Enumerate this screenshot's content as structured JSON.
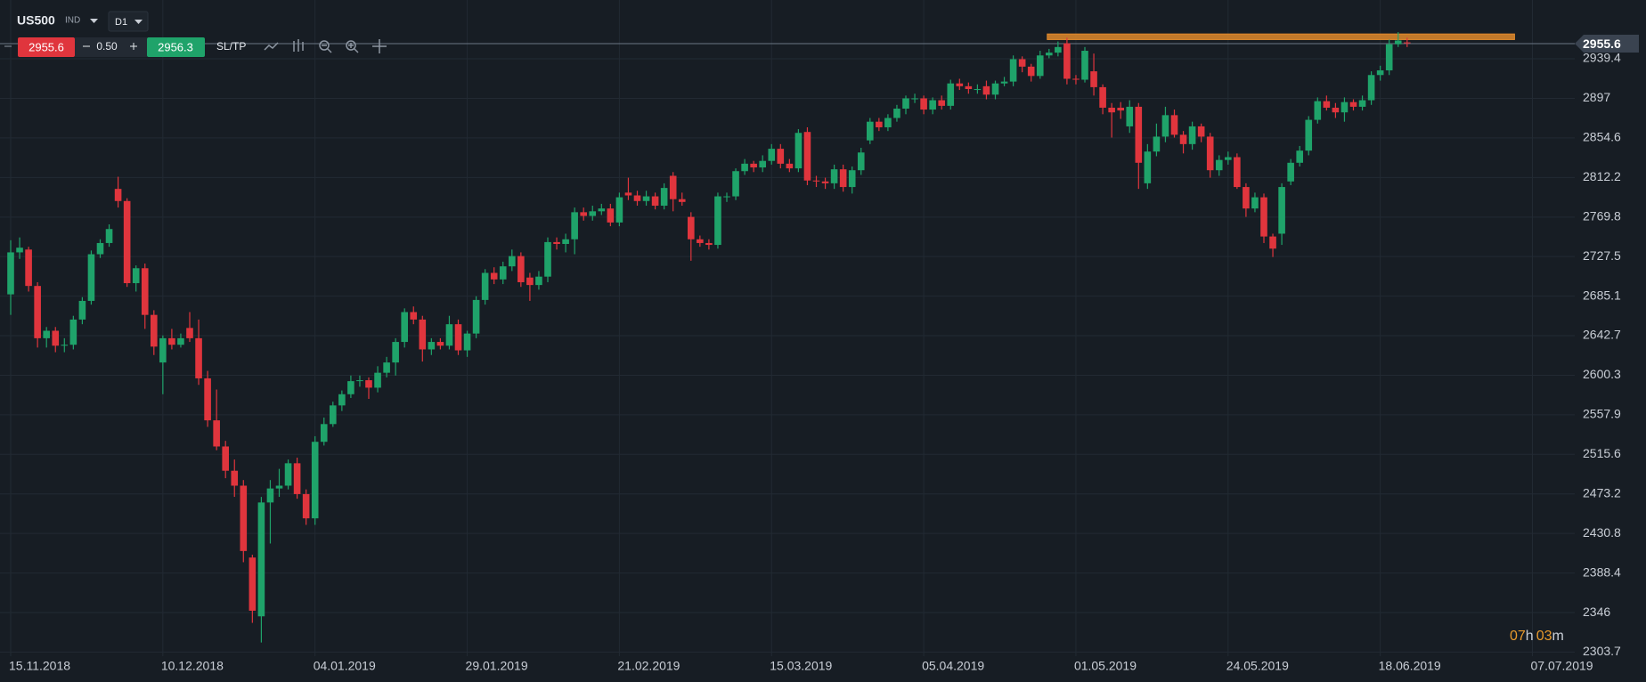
{
  "toolbar": {
    "symbol": "US500",
    "market": "IND",
    "timeframe": "D1",
    "sell": "2955.6",
    "lot": "0.50",
    "buy": "2956.3",
    "sltp": "SL/TP"
  },
  "countdown": [
    "07",
    "h",
    "03",
    "m"
  ],
  "chart_data": {
    "type": "candlestick",
    "categories": [
      "15.11.2018",
      null,
      null,
      null,
      null,
      null,
      null,
      null,
      null,
      null,
      null,
      null,
      null,
      null,
      null,
      null,
      null,
      "10.12.2018",
      null,
      null,
      null,
      null,
      null,
      null,
      null,
      null,
      null,
      null,
      null,
      null,
      null,
      null,
      null,
      null,
      "04.01.2019",
      null,
      null,
      null,
      null,
      null,
      null,
      null,
      null,
      null,
      null,
      null,
      null,
      null,
      null,
      null,
      null,
      "29.01.2019",
      null,
      null,
      null,
      null,
      null,
      null,
      null,
      null,
      null,
      null,
      null,
      null,
      null,
      null,
      null,
      null,
      "21.02.2019",
      null,
      null,
      null,
      null,
      null,
      null,
      null,
      null,
      null,
      null,
      null,
      null,
      null,
      null,
      null,
      null,
      "15.03.2019",
      null,
      null,
      null,
      null,
      null,
      null,
      null,
      null,
      null,
      null,
      null,
      null,
      null,
      null,
      null,
      null,
      "05.04.2019",
      null,
      null,
      null,
      null,
      null,
      null,
      null,
      null,
      null,
      null,
      null,
      null,
      null,
      null,
      null,
      null,
      "01.05.2019",
      null,
      null,
      null,
      null,
      null,
      null,
      null,
      null,
      null,
      null,
      null,
      null,
      null,
      null,
      null,
      null,
      "24.05.2019",
      null,
      null,
      null,
      null,
      null,
      null,
      null,
      null,
      null,
      null,
      null,
      null,
      null,
      null,
      null,
      null,
      "18.06.2019",
      null,
      null,
      null,
      null,
      null,
      null,
      null,
      null,
      null,
      null,
      null,
      null,
      null,
      null,
      null,
      null,
      "07.07.2019"
    ],
    "open": [
      2687,
      2732,
      2735,
      2696,
      2640,
      2648,
      2632,
      2633,
      2660,
      2680,
      2730,
      2742,
      2800,
      2787,
      2699,
      2715,
      2665,
      2614,
      2640,
      2633,
      2651,
      2640,
      2597,
      2552,
      2524,
      2498,
      2482,
      2405,
      2342,
      2464,
      2479,
      2482,
      2506,
      2473,
      2447,
      2529,
      2548,
      2568,
      2580,
      2594,
      2595,
      2587,
      2603,
      2614,
      2636,
      2668,
      2660,
      2628,
      2636,
      2632,
      2655,
      2627,
      2645,
      2681,
      2710,
      2703,
      2717,
      2728,
      2705,
      2697,
      2706,
      2743,
      2741,
      2746,
      2775,
      2771,
      2776,
      2779,
      2764,
      2796,
      2793,
      2787,
      2792,
      2782,
      2814,
      2789,
      2770,
      2746,
      2742,
      2740,
      2792,
      2792,
      2819,
      2827,
      2823,
      2830,
      2843,
      2827,
      2822,
      2861,
      2809,
      2808,
      2806,
      2821,
      2802,
      2820,
      2852,
      2872,
      2866,
      2876,
      2886,
      2897,
      2897,
      2885,
      2895,
      2889,
      2913,
      2910,
      2906,
      2910,
      2901,
      2913,
      2915,
      2939,
      2931,
      2921,
      2943,
      2946,
      2956,
      2918,
      2917,
      2926,
      2909,
      2887,
      2887,
      2867,
      2888,
      2806,
      2840,
      2856,
      2879,
      2858,
      2848,
      2867,
      2856,
      2820,
      2831,
      2834,
      2802,
      2779,
      2791,
      2749,
      2752,
      2808,
      2828,
      2841,
      2874,
      2894,
      2887,
      2882,
      2893,
      2888,
      2895,
      2922,
      2927,
      2955,
      2957,
      null,
      null,
      null,
      null,
      null,
      null,
      null,
      null,
      null,
      null,
      null,
      null,
      null,
      null
    ],
    "high": [
      2745,
      2748,
      2738,
      2700,
      2652,
      2652,
      2640,
      2664,
      2684,
      2734,
      2746,
      2762,
      2813,
      2790,
      2718,
      2720,
      2670,
      2643,
      2650,
      2645,
      2668,
      2660,
      2605,
      2585,
      2530,
      2510,
      2488,
      2408,
      2470,
      2488,
      2500,
      2510,
      2512,
      2478,
      2535,
      2555,
      2572,
      2584,
      2600,
      2600,
      2598,
      2610,
      2620,
      2640,
      2672,
      2674,
      2664,
      2640,
      2640,
      2664,
      2660,
      2648,
      2685,
      2714,
      2716,
      2722,
      2735,
      2732,
      2710,
      2712,
      2748,
      2748,
      2752,
      2780,
      2780,
      2782,
      2784,
      2784,
      2796,
      2812,
      2798,
      2798,
      2796,
      2806,
      2818,
      2796,
      2775,
      2750,
      2746,
      2796,
      2796,
      2822,
      2832,
      2830,
      2836,
      2848,
      2848,
      2832,
      2864,
      2866,
      2814,
      2812,
      2826,
      2826,
      2824,
      2844,
      2876,
      2876,
      2880,
      2890,
      2900,
      2902,
      2900,
      2898,
      2900,
      2917,
      2918,
      2914,
      2912,
      2916,
      2916,
      2920,
      2943,
      2942,
      2934,
      2948,
      2950,
      2958,
      2962,
      2922,
      2952,
      2945,
      2912,
      2892,
      2893,
      2895,
      2892,
      2848,
      2870,
      2888,
      2885,
      2862,
      2872,
      2870,
      2860,
      2836,
      2840,
      2838,
      2806,
      2796,
      2795,
      2752,
      2806,
      2832,
      2846,
      2878,
      2898,
      2900,
      2892,
      2898,
      2896,
      2900,
      2926,
      2932,
      2960,
      2968,
      2962,
      null,
      null,
      null,
      null,
      null,
      null,
      null,
      null,
      null,
      null,
      null,
      null,
      null,
      null
    ],
    "low": [
      2665,
      2725,
      2690,
      2630,
      2630,
      2625,
      2625,
      2628,
      2655,
      2676,
      2726,
      2738,
      2780,
      2695,
      2690,
      2650,
      2622,
      2580,
      2628,
      2630,
      2636,
      2590,
      2545,
      2520,
      2490,
      2470,
      2400,
      2335,
      2314,
      2420,
      2470,
      2478,
      2468,
      2440,
      2440,
      2525,
      2545,
      2562,
      2576,
      2588,
      2575,
      2582,
      2598,
      2600,
      2630,
      2655,
      2615,
      2622,
      2628,
      2628,
      2622,
      2620,
      2640,
      2676,
      2698,
      2698,
      2712,
      2695,
      2680,
      2692,
      2700,
      2735,
      2732,
      2730,
      2766,
      2766,
      2772,
      2760,
      2760,
      2788,
      2782,
      2782,
      2778,
      2778,
      2776,
      2782,
      2723,
      2738,
      2735,
      2736,
      2786,
      2788,
      2815,
      2818,
      2818,
      2826,
      2822,
      2818,
      2818,
      2804,
      2802,
      2800,
      2800,
      2797,
      2795,
      2815,
      2848,
      2862,
      2862,
      2872,
      2880,
      2892,
      2880,
      2880,
      2885,
      2885,
      2906,
      2902,
      2902,
      2896,
      2896,
      2910,
      2910,
      2925,
      2915,
      2918,
      2940,
      2942,
      2912,
      2912,
      2914,
      2900,
      2880,
      2855,
      2875,
      2860,
      2800,
      2800,
      2835,
      2850,
      2855,
      2838,
      2842,
      2850,
      2812,
      2814,
      2826,
      2800,
      2770,
      2775,
      2742,
      2727,
      2740,
      2804,
      2824,
      2836,
      2870,
      2884,
      2876,
      2872,
      2884,
      2884,
      2890,
      2916,
      2922,
      2952,
      2952,
      null,
      null,
      null,
      null,
      null,
      null,
      null,
      null,
      null,
      null,
      null,
      null,
      null,
      null
    ],
    "close": [
      2732,
      2737,
      2696,
      2640,
      2648,
      2632,
      2633,
      2660,
      2680,
      2730,
      2742,
      2757,
      2787,
      2699,
      2715,
      2665,
      2631,
      2640,
      2633,
      2640,
      2640,
      2597,
      2552,
      2524,
      2498,
      2482,
      2412,
      2348,
      2464,
      2479,
      2482,
      2506,
      2473,
      2447,
      2529,
      2548,
      2568,
      2580,
      2594,
      2595,
      2587,
      2603,
      2614,
      2636,
      2668,
      2660,
      2628,
      2636,
      2632,
      2655,
      2627,
      2645,
      2681,
      2710,
      2703,
      2717,
      2728,
      2700,
      2697,
      2706,
      2743,
      2741,
      2746,
      2775,
      2771,
      2776,
      2779,
      2764,
      2791,
      2793,
      2787,
      2792,
      2782,
      2801,
      2789,
      2786,
      2746,
      2742,
      2740,
      2792,
      2792,
      2819,
      2827,
      2823,
      2830,
      2843,
      2827,
      2822,
      2860,
      2809,
      2808,
      2806,
      2821,
      2802,
      2820,
      2839,
      2872,
      2866,
      2876,
      2886,
      2897,
      2897,
      2885,
      2895,
      2889,
      2913,
      2910,
      2907,
      2907,
      2901,
      2913,
      2915,
      2939,
      2931,
      2921,
      2943,
      2946,
      2952,
      2918,
      2917,
      2948,
      2909,
      2887,
      2882,
      2884,
      2888,
      2828,
      2840,
      2856,
      2879,
      2858,
      2848,
      2867,
      2856,
      2820,
      2831,
      2834,
      2802,
      2779,
      2791,
      2749,
      2736,
      2802,
      2828,
      2841,
      2874,
      2894,
      2887,
      2882,
      2893,
      2888,
      2895,
      2922,
      2927,
      2955,
      2959,
      2956,
      null,
      null,
      null,
      null,
      null,
      null,
      null,
      null,
      null,
      null,
      null,
      null,
      null,
      null
    ],
    "up_color": "#1fa36a",
    "down_color": "#e0353d",
    "ylim": [
      2299.3,
      3002.4
    ],
    "yticks": [
      2303.7,
      2346.0,
      2388.4,
      2430.8,
      2473.2,
      2515.6,
      2557.9,
      2600.3,
      2642.7,
      2685.1,
      2727.5,
      2769.8,
      2812.2,
      2854.6,
      2897.0,
      2939.4
    ],
    "grid": true,
    "price_line": 2955.6,
    "zone": [
      2960,
      2966
    ],
    "zone_color": "#e08a2c"
  }
}
